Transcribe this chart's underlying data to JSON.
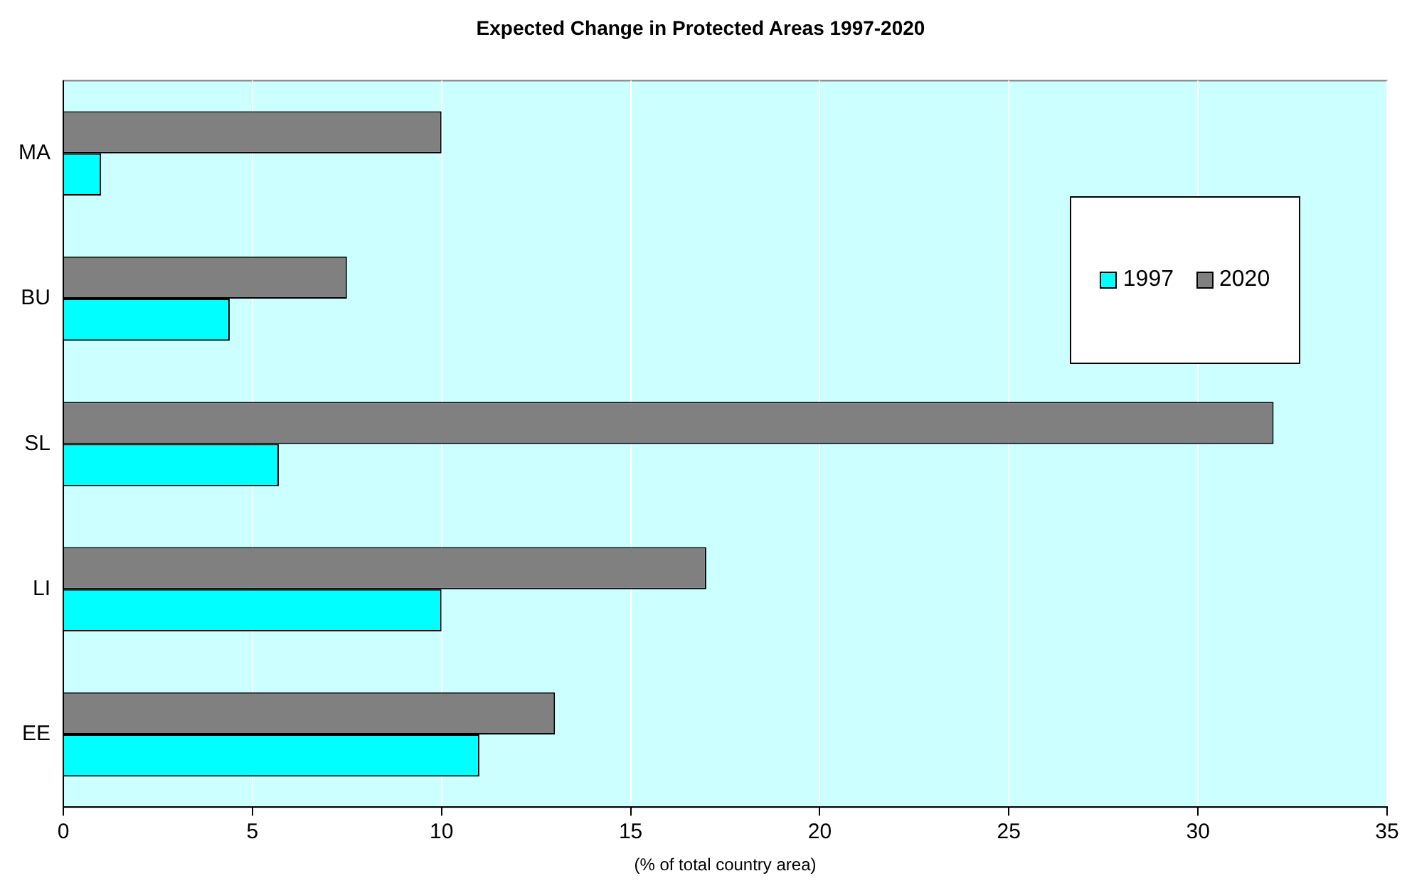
{
  "chart_data": {
    "type": "bar",
    "orientation": "horizontal",
    "title": "Expected Change in Protected Areas 1997-2020",
    "xlabel": "(% of total country area)",
    "categories": [
      "MA",
      "BU",
      "SL",
      "LI",
      "EE"
    ],
    "series": [
      {
        "name": "1997",
        "color": "#00ffff",
        "values": [
          1,
          4.4,
          5.7,
          10,
          11
        ]
      },
      {
        "name": "2020",
        "color": "#808080",
        "values": [
          10,
          7.5,
          32,
          17,
          13
        ]
      }
    ],
    "xlim": [
      0,
      35
    ],
    "xticks": [
      0,
      5,
      10,
      15,
      20,
      25,
      30,
      35
    ],
    "grid": "x",
    "legend": "top right"
  }
}
